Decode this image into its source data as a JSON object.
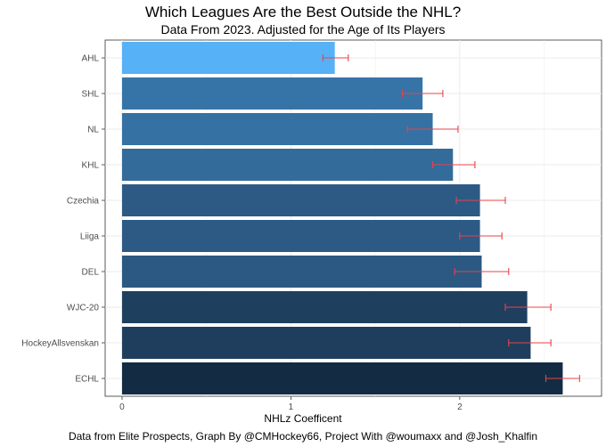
{
  "chart_data": {
    "type": "bar",
    "orientation": "horizontal",
    "title": "Which Leagues Are the Best Outside the NHL?",
    "subtitle": "Data From 2023. Adjusted for the Age of Its Players",
    "xlabel": "NHLz Coefficent",
    "ylabel": "",
    "caption": "Data from Elite Prospects, Graph By @CMHockey66, Project With @woumaxx and @Josh_Khalfin",
    "xlim": [
      -0.1,
      2.84
    ],
    "xticks": [
      0,
      1,
      2
    ],
    "grid": true,
    "error_bar_color": "#e8434a",
    "categories": [
      "AHL",
      "SHL",
      "NL",
      "KHL",
      "Czechia",
      "Liiga",
      "DEL",
      "WJC-20",
      "HockeyAllsvenskan",
      "ECHL"
    ],
    "values": [
      1.26,
      1.78,
      1.84,
      1.96,
      2.12,
      2.12,
      2.13,
      2.4,
      2.42,
      2.61
    ],
    "error_low": [
      1.19,
      1.66,
      1.69,
      1.84,
      1.98,
      2.0,
      1.97,
      2.27,
      2.29,
      2.51
    ],
    "error_high": [
      1.34,
      1.9,
      1.99,
      2.09,
      2.27,
      2.25,
      2.29,
      2.54,
      2.54,
      2.71
    ],
    "bar_colors": [
      "#56b1f7",
      "#3674a8",
      "#3571a3",
      "#336b9b",
      "#2c5a84",
      "#2c5a84",
      "#2b5982",
      "#1f3f5f",
      "#1f3e5d",
      "#132b43"
    ]
  }
}
